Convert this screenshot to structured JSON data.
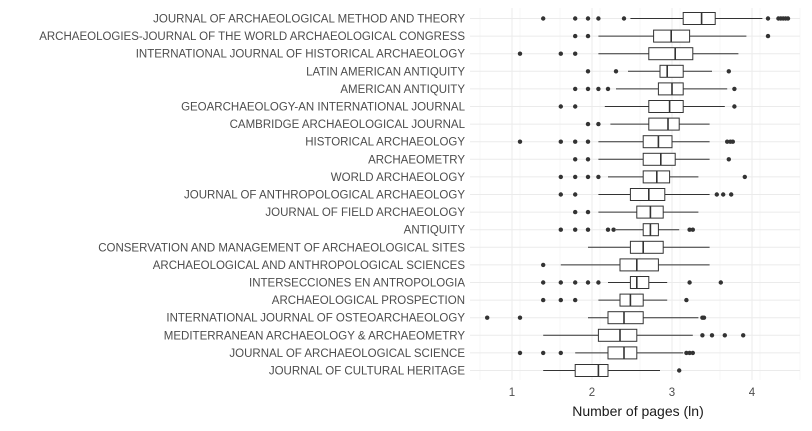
{
  "chart_data": {
    "type": "boxplot",
    "orientation": "horizontal",
    "title": "",
    "xlabel": "Number of pages (ln)",
    "ylabel": "",
    "xlim": [
      0.6,
      4.6
    ],
    "xticks": [
      1,
      2,
      3,
      4
    ],
    "grid": true,
    "legend": "none",
    "colors": {
      "box_fill": "#ffffff",
      "line": "#333333",
      "outlier": "#333333",
      "grid_major": "#ebebeb",
      "grid_minor": "#f5f5f5"
    },
    "categories": [
      "JOURNAL OF ARCHAEOLOGICAL METHOD AND THEORY",
      "ARCHAEOLOGIES-JOURNAL OF THE WORLD ARCHAEOLOGICAL CONGRESS",
      "INTERNATIONAL JOURNAL OF HISTORICAL ARCHAEOLOGY",
      "LATIN AMERICAN ANTIQUITY",
      "AMERICAN ANTIQUITY",
      "GEOARCHAEOLOGY-AN INTERNATIONAL JOURNAL",
      "CAMBRIDGE ARCHAEOLOGICAL JOURNAL",
      "HISTORICAL ARCHAEOLOGY",
      "ARCHAEOMETRY",
      "WORLD ARCHAEOLOGY",
      "JOURNAL OF ANTHROPOLOGICAL ARCHAEOLOGY",
      "JOURNAL OF FIELD ARCHAEOLOGY",
      "ANTIQUITY",
      "CONSERVATION AND MANAGEMENT OF ARCHAEOLOGICAL SITES",
      "ARCHAEOLOGICAL AND ANTHROPOLOGICAL SCIENCES",
      "INTERSECCIONES EN ANTROPOLOGIA",
      "ARCHAEOLOGICAL PROSPECTION",
      "INTERNATIONAL JOURNAL OF OSTEOARCHAEOLOGY",
      "MEDITERRANEAN ARCHAEOLOGY & ARCHAEOMETRY",
      "JOURNAL OF ARCHAEOLOGICAL SCIENCE",
      "JOURNAL OF CULTURAL HERITAGE"
    ],
    "boxes": [
      {
        "whisker_low": 2.48,
        "q1": 3.14,
        "median": 3.37,
        "q3": 3.54,
        "whisker_high": 4.13,
        "outliers": [
          1.39,
          1.79,
          1.95,
          2.08,
          2.4,
          4.2,
          4.33,
          4.36,
          4.39,
          4.42,
          4.45
        ]
      },
      {
        "whisker_low": 2.08,
        "q1": 2.77,
        "median": 2.99,
        "q3": 3.22,
        "whisker_high": 3.93,
        "outliers": [
          1.79,
          1.95,
          4.2
        ]
      },
      {
        "whisker_low": 2.08,
        "q1": 2.71,
        "median": 3.04,
        "q3": 3.26,
        "whisker_high": 3.83,
        "outliers": [
          1.1,
          1.61,
          1.79
        ]
      },
      {
        "whisker_low": 2.45,
        "q1": 2.85,
        "median": 2.94,
        "q3": 3.14,
        "whisker_high": 3.5,
        "outliers": [
          1.95,
          2.3,
          3.71
        ]
      },
      {
        "whisker_low": 2.3,
        "q1": 2.83,
        "median": 3.0,
        "q3": 3.14,
        "whisker_high": 3.69,
        "outliers": [
          1.79,
          1.95,
          2.08,
          2.2,
          3.78
        ]
      },
      {
        "whisker_low": 2.16,
        "q1": 2.71,
        "median": 2.97,
        "q3": 3.14,
        "whisker_high": 3.66,
        "outliers": [
          1.61,
          1.79,
          3.78
        ]
      },
      {
        "whisker_low": 2.23,
        "q1": 2.71,
        "median": 2.95,
        "q3": 3.09,
        "whisker_high": 3.47,
        "outliers": [
          1.95,
          2.08
        ]
      },
      {
        "whisker_low": 2.08,
        "q1": 2.64,
        "median": 2.83,
        "q3": 3.0,
        "whisker_high": 3.47,
        "outliers": [
          1.1,
          1.61,
          1.79,
          1.95,
          3.69,
          3.73,
          3.76
        ]
      },
      {
        "whisker_low": 2.08,
        "q1": 2.64,
        "median": 2.86,
        "q3": 3.04,
        "whisker_high": 3.47,
        "outliers": [
          1.79,
          1.95,
          3.71
        ]
      },
      {
        "whisker_low": 2.2,
        "q1": 2.64,
        "median": 2.81,
        "q3": 2.97,
        "whisker_high": 3.33,
        "outliers": [
          1.61,
          1.79,
          1.95,
          2.08,
          3.91
        ]
      },
      {
        "whisker_low": 2.08,
        "q1": 2.48,
        "median": 2.71,
        "q3": 2.91,
        "whisker_high": 3.47,
        "outliers": [
          1.61,
          1.79,
          3.56,
          3.64,
          3.74
        ]
      },
      {
        "whisker_low": 2.08,
        "q1": 2.56,
        "median": 2.73,
        "q3": 2.89,
        "whisker_high": 3.33,
        "outliers": [
          1.79,
          1.95
        ]
      },
      {
        "whisker_low": 2.3,
        "q1": 2.64,
        "median": 2.73,
        "q3": 2.83,
        "whisker_high": 3.09,
        "outliers": [
          1.61,
          1.79,
          1.95,
          2.2,
          2.27,
          3.22,
          3.26
        ]
      },
      {
        "whisker_low": 1.95,
        "q1": 2.48,
        "median": 2.64,
        "q3": 2.89,
        "whisker_high": 3.47,
        "outliers": []
      },
      {
        "whisker_low": 1.61,
        "q1": 2.35,
        "median": 2.56,
        "q3": 2.83,
        "whisker_high": 3.47,
        "outliers": [
          1.39
        ]
      },
      {
        "whisker_low": 2.2,
        "q1": 2.48,
        "median": 2.56,
        "q3": 2.71,
        "whisker_high": 2.94,
        "outliers": [
          1.39,
          1.61,
          1.79,
          1.95,
          2.08,
          3.22,
          3.61
        ]
      },
      {
        "whisker_low": 2.08,
        "q1": 2.35,
        "median": 2.48,
        "q3": 2.64,
        "whisker_high": 2.94,
        "outliers": [
          1.39,
          1.61,
          1.79,
          3.18
        ]
      },
      {
        "whisker_low": 1.95,
        "q1": 2.2,
        "median": 2.4,
        "q3": 2.64,
        "whisker_high": 3.33,
        "outliers": [
          0.69,
          1.1,
          3.38,
          3.4
        ]
      },
      {
        "whisker_low": 1.39,
        "q1": 2.08,
        "median": 2.35,
        "q3": 2.56,
        "whisker_high": 3.26,
        "outliers": [
          3.38,
          3.5,
          3.66,
          3.89
        ]
      },
      {
        "whisker_low": 1.79,
        "q1": 2.2,
        "median": 2.4,
        "q3": 2.56,
        "whisker_high": 3.14,
        "outliers": [
          1.1,
          1.39,
          1.61,
          3.18,
          3.22,
          3.26
        ]
      },
      {
        "whisker_low": 1.39,
        "q1": 1.79,
        "median": 2.08,
        "q3": 2.2,
        "whisker_high": 2.85,
        "outliers": [
          3.09
        ]
      }
    ]
  }
}
